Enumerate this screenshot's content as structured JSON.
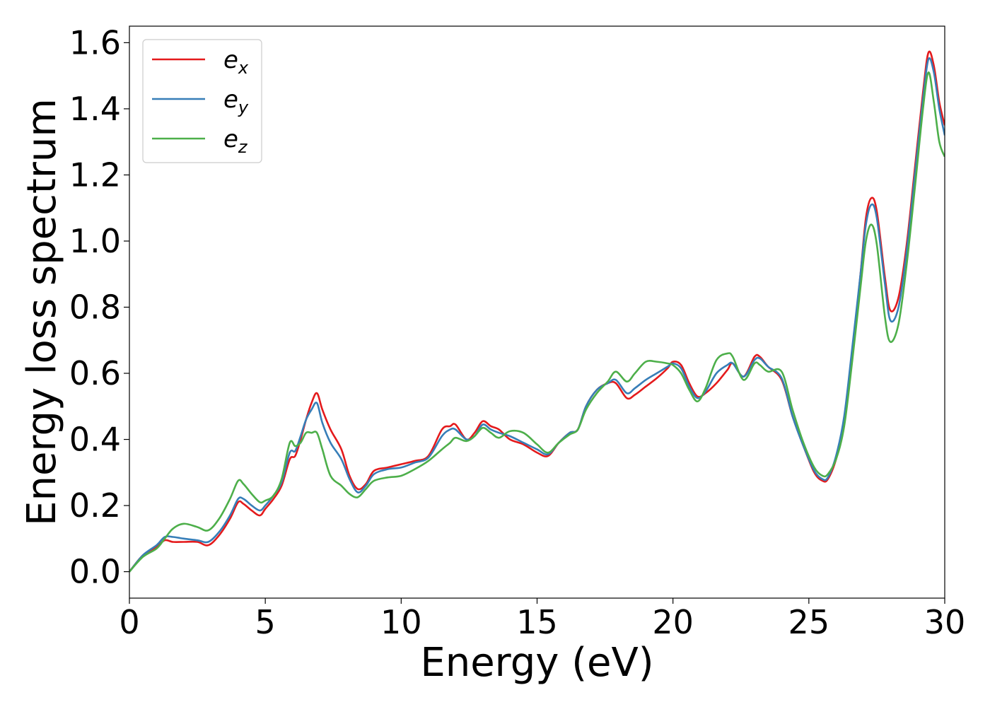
{
  "chart_data": {
    "type": "line",
    "xlabel": "Energy (eV)",
    "ylabel": "Energy loss spectrum",
    "xlim": [
      0,
      30
    ],
    "ylim": [
      -0.08,
      1.65
    ],
    "xticks": [
      "0",
      "5",
      "10",
      "15",
      "20",
      "25",
      "30"
    ],
    "yticks": [
      "0.0",
      "0.2",
      "0.4",
      "0.6",
      "0.8",
      "1.0",
      "1.2",
      "1.4",
      "1.6"
    ],
    "grid": false,
    "legend_position": "top-left",
    "series": [
      {
        "name": "e",
        "subscript": "x",
        "color": "#e41a1c",
        "x": [
          0,
          0.5,
          1,
          1.3,
          1.6,
          2,
          2.5,
          2.9,
          3.3,
          3.7,
          4,
          4.2,
          4.5,
          4.8,
          5,
          5.3,
          5.6,
          5.9,
          6.1,
          6.3,
          6.5,
          6.7,
          6.9,
          7.1,
          7.4,
          7.8,
          8.1,
          8.4,
          8.7,
          9,
          9.5,
          10,
          10.5,
          11,
          11.5,
          11.8,
          12,
          12.4,
          12.7,
          13,
          13.3,
          13.6,
          14,
          14.5,
          15,
          15.4,
          15.8,
          16.2,
          16.5,
          16.8,
          17.2,
          17.6,
          17.9,
          18.3,
          18.6,
          19,
          19.4,
          19.8,
          20,
          20.3,
          20.6,
          20.9,
          21.2,
          21.6,
          22,
          22.2,
          22.6,
          23,
          23.2,
          23.5,
          24,
          24.4,
          24.8,
          25.2,
          25.5,
          25.7,
          26,
          26.3,
          26.6,
          26.9,
          27.1,
          27.3,
          27.5,
          27.8,
          28,
          28.3,
          28.6,
          28.9,
          29.2,
          29.4,
          29.6,
          29.8,
          30
        ],
        "values": [
          0.0,
          0.05,
          0.075,
          0.095,
          0.09,
          0.09,
          0.09,
          0.08,
          0.11,
          0.16,
          0.21,
          0.205,
          0.185,
          0.17,
          0.19,
          0.22,
          0.26,
          0.34,
          0.35,
          0.4,
          0.46,
          0.51,
          0.54,
          0.49,
          0.43,
          0.37,
          0.29,
          0.25,
          0.265,
          0.305,
          0.315,
          0.325,
          0.335,
          0.35,
          0.43,
          0.44,
          0.445,
          0.4,
          0.42,
          0.455,
          0.44,
          0.43,
          0.4,
          0.385,
          0.36,
          0.35,
          0.39,
          0.42,
          0.43,
          0.5,
          0.55,
          0.57,
          0.57,
          0.525,
          0.535,
          0.56,
          0.585,
          0.615,
          0.635,
          0.625,
          0.57,
          0.53,
          0.54,
          0.57,
          0.61,
          0.63,
          0.59,
          0.65,
          0.65,
          0.62,
          0.58,
          0.47,
          0.38,
          0.3,
          0.275,
          0.28,
          0.34,
          0.45,
          0.66,
          0.9,
          1.07,
          1.13,
          1.09,
          0.89,
          0.79,
          0.83,
          0.99,
          1.22,
          1.45,
          1.57,
          1.53,
          1.42,
          1.35
        ]
      },
      {
        "name": "e",
        "subscript": "y",
        "color": "#377eb8",
        "x": [
          0,
          0.5,
          1,
          1.3,
          1.6,
          2,
          2.5,
          2.9,
          3.3,
          3.7,
          4,
          4.2,
          4.5,
          4.8,
          5,
          5.3,
          5.6,
          5.9,
          6.1,
          6.3,
          6.5,
          6.7,
          6.9,
          7.1,
          7.4,
          7.8,
          8.1,
          8.4,
          8.7,
          9,
          9.5,
          10,
          10.5,
          11,
          11.5,
          11.8,
          12,
          12.4,
          12.7,
          13,
          13.3,
          13.6,
          14,
          14.5,
          15,
          15.4,
          15.8,
          16.2,
          16.5,
          16.8,
          17.2,
          17.6,
          17.9,
          18.3,
          18.6,
          19,
          19.4,
          19.8,
          20,
          20.3,
          20.6,
          20.9,
          21.2,
          21.6,
          22,
          22.2,
          22.6,
          23,
          23.2,
          23.5,
          24,
          24.4,
          24.8,
          25.2,
          25.5,
          25.7,
          26,
          26.3,
          26.6,
          26.9,
          27.1,
          27.3,
          27.5,
          27.8,
          28,
          28.3,
          28.6,
          28.9,
          29.2,
          29.4,
          29.6,
          29.8,
          30
        ],
        "values": [
          0.0,
          0.05,
          0.08,
          0.105,
          0.105,
          0.1,
          0.095,
          0.09,
          0.12,
          0.17,
          0.22,
          0.22,
          0.2,
          0.185,
          0.2,
          0.23,
          0.27,
          0.36,
          0.365,
          0.41,
          0.46,
          0.49,
          0.51,
          0.45,
          0.39,
          0.34,
          0.28,
          0.24,
          0.26,
          0.295,
          0.31,
          0.315,
          0.33,
          0.345,
          0.41,
          0.43,
          0.43,
          0.4,
          0.41,
          0.445,
          0.43,
          0.42,
          0.41,
          0.39,
          0.37,
          0.355,
          0.39,
          0.42,
          0.43,
          0.5,
          0.55,
          0.57,
          0.58,
          0.54,
          0.555,
          0.58,
          0.6,
          0.62,
          0.63,
          0.615,
          0.56,
          0.525,
          0.545,
          0.6,
          0.625,
          0.63,
          0.59,
          0.64,
          0.645,
          0.62,
          0.585,
          0.47,
          0.38,
          0.305,
          0.28,
          0.285,
          0.35,
          0.47,
          0.68,
          0.9,
          1.05,
          1.11,
          1.07,
          0.87,
          0.76,
          0.8,
          0.97,
          1.2,
          1.43,
          1.55,
          1.51,
          1.4,
          1.32
        ]
      },
      {
        "name": "e",
        "subscript": "z",
        "color": "#4daf4a",
        "x": [
          0,
          0.5,
          1,
          1.3,
          1.6,
          2,
          2.5,
          2.9,
          3.3,
          3.7,
          4,
          4.2,
          4.5,
          4.8,
          5,
          5.3,
          5.6,
          5.9,
          6.1,
          6.3,
          6.5,
          6.7,
          6.9,
          7.1,
          7.4,
          7.8,
          8.1,
          8.4,
          8.7,
          9,
          9.5,
          10,
          10.5,
          11,
          11.5,
          11.8,
          12,
          12.4,
          12.7,
          13,
          13.3,
          13.6,
          14,
          14.5,
          15,
          15.4,
          15.8,
          16.2,
          16.5,
          16.8,
          17.2,
          17.6,
          17.9,
          18.3,
          18.6,
          19,
          19.4,
          19.8,
          20,
          20.3,
          20.6,
          20.9,
          21.2,
          21.6,
          22,
          22.2,
          22.6,
          23,
          23.2,
          23.5,
          24,
          24.4,
          24.8,
          25.2,
          25.5,
          25.7,
          26,
          26.3,
          26.6,
          26.9,
          27.1,
          27.3,
          27.5,
          27.8,
          28,
          28.3,
          28.6,
          28.9,
          29.2,
          29.4,
          29.6,
          29.8,
          30
        ],
        "values": [
          0.0,
          0.045,
          0.07,
          0.1,
          0.13,
          0.145,
          0.135,
          0.125,
          0.16,
          0.22,
          0.275,
          0.265,
          0.235,
          0.21,
          0.215,
          0.23,
          0.28,
          0.39,
          0.38,
          0.39,
          0.42,
          0.42,
          0.42,
          0.37,
          0.29,
          0.26,
          0.235,
          0.225,
          0.25,
          0.275,
          0.285,
          0.29,
          0.31,
          0.335,
          0.37,
          0.39,
          0.405,
          0.395,
          0.41,
          0.435,
          0.42,
          0.405,
          0.425,
          0.42,
          0.385,
          0.36,
          0.39,
          0.415,
          0.43,
          0.49,
          0.54,
          0.575,
          0.605,
          0.575,
          0.6,
          0.635,
          0.635,
          0.63,
          0.625,
          0.6,
          0.55,
          0.515,
          0.555,
          0.64,
          0.66,
          0.65,
          0.58,
          0.63,
          0.625,
          0.605,
          0.605,
          0.49,
          0.39,
          0.315,
          0.29,
          0.295,
          0.34,
          0.44,
          0.64,
          0.86,
          1.0,
          1.05,
          0.99,
          0.77,
          0.695,
          0.75,
          0.93,
          1.16,
          1.4,
          1.51,
          1.42,
          1.3,
          1.255
        ]
      }
    ]
  }
}
